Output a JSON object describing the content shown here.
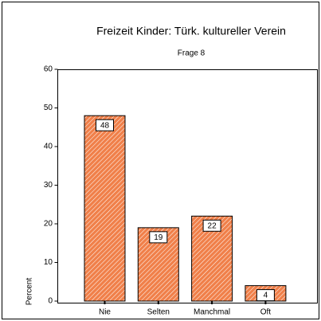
{
  "chart_data": {
    "type": "bar",
    "title": "Freizeit Kinder: Türk. kultureller Verein",
    "subtitle": "Frage 8",
    "y_label": "Percent",
    "categories": [
      "Nie",
      "Selten",
      "Manchmal",
      "Oft"
    ],
    "values": [
      48,
      19,
      22,
      4
    ],
    "color": "#f0804a",
    "ylim": [
      0,
      60
    ],
    "yticks": [
      0,
      10,
      20,
      30,
      40,
      50,
      60
    ]
  }
}
